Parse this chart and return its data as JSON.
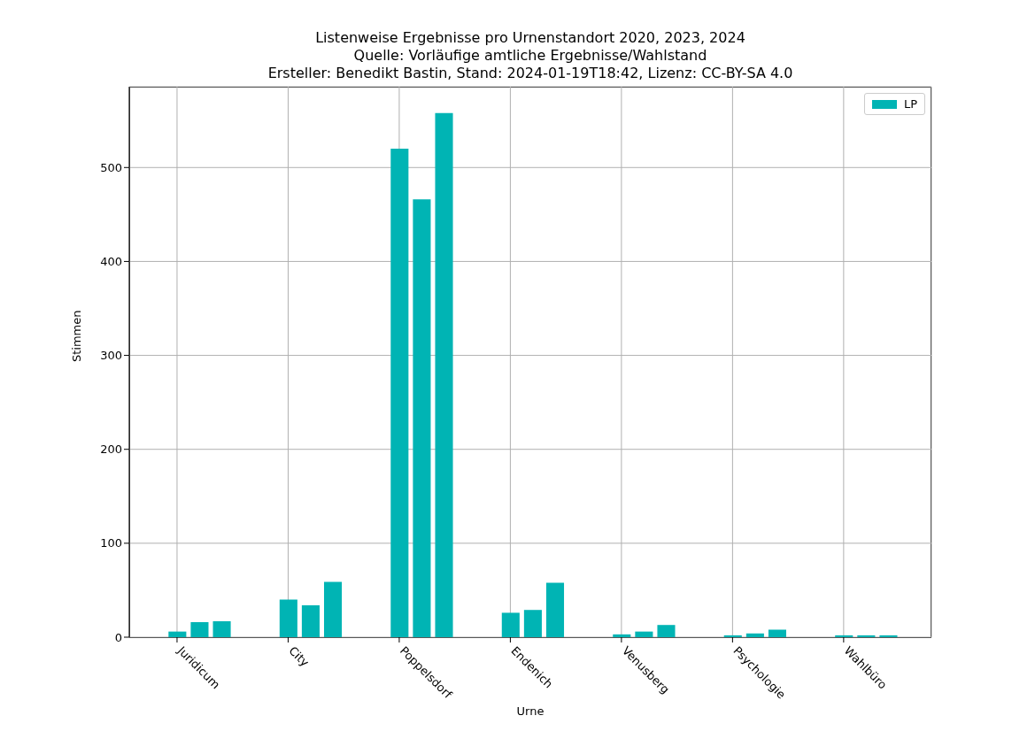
{
  "chart_data": {
    "type": "bar",
    "title": "Listenweise Ergebnisse pro Urnenstandort 2020, 2023, 2024",
    "subtitle": "Quelle: Vorläufige amtliche Ergebnisse/Wahlstand",
    "annotations": [
      "Ersteller: Benedikt Bastin, Stand: 2024-01-19T18:42, Lizenz: CC-BY-SA 4.0"
    ],
    "xlabel": "Urne",
    "ylabel": "Stimmen",
    "categories": [
      "Juridicum",
      "City",
      "Poppelsdorf",
      "Endenich",
      "Venusberg",
      "Psychologie",
      "Wahlbüro"
    ],
    "series": [
      {
        "name": "LP",
        "color": "#00b4b4",
        "values": [
          6,
          40,
          520,
          26,
          3,
          2,
          2
        ]
      },
      {
        "color": "#00b4b4",
        "values": [
          16,
          34,
          466,
          29,
          6,
          4,
          2
        ]
      },
      {
        "color": "#00b4b4",
        "values": [
          17,
          59,
          558,
          58,
          13,
          8,
          2
        ]
      }
    ],
    "ylim": [
      0,
      586
    ],
    "yticks": [
      0,
      100,
      200,
      300,
      400,
      500
    ],
    "grid": true,
    "legend": "top right"
  }
}
